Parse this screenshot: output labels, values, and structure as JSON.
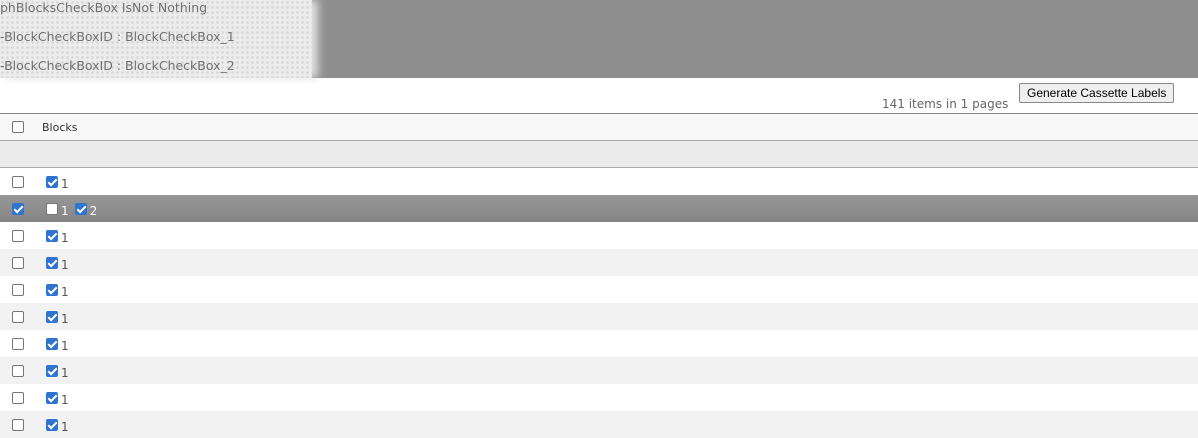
{
  "debug": [
    "phBlocksCheckBox IsNot Nothing",
    "-BlockCheckBoxID : BlockCheckBox_1",
    "-BlockCheckBoxID : BlockCheckBox_2"
  ],
  "toolbar": {
    "generate_label": "Generate Cassette Labels",
    "pager_info": "141 items in 1 pages"
  },
  "grid": {
    "columns": [
      "Blocks"
    ],
    "header_checked": false,
    "rows": [
      {
        "checked": false,
        "blocks": [
          {
            "label": "1",
            "checked": true
          }
        ]
      },
      {
        "checked": true,
        "selected": true,
        "blocks": [
          {
            "label": "1",
            "checked": false
          },
          {
            "label": "2",
            "checked": true
          }
        ]
      },
      {
        "checked": false,
        "blocks": [
          {
            "label": "1",
            "checked": true
          }
        ]
      },
      {
        "checked": false,
        "blocks": [
          {
            "label": "1",
            "checked": true
          }
        ]
      },
      {
        "checked": false,
        "blocks": [
          {
            "label": "1",
            "checked": true
          }
        ]
      },
      {
        "checked": false,
        "blocks": [
          {
            "label": "1",
            "checked": true
          }
        ]
      },
      {
        "checked": false,
        "blocks": [
          {
            "label": "1",
            "checked": true
          }
        ]
      },
      {
        "checked": false,
        "blocks": [
          {
            "label": "1",
            "checked": true
          }
        ]
      },
      {
        "checked": false,
        "blocks": [
          {
            "label": "1",
            "checked": true
          }
        ]
      },
      {
        "checked": false,
        "blocks": [
          {
            "label": "1",
            "checked": true
          }
        ]
      }
    ]
  },
  "colors": {
    "accent": "#2f74d0",
    "selected_row": "#8e8e8e"
  }
}
